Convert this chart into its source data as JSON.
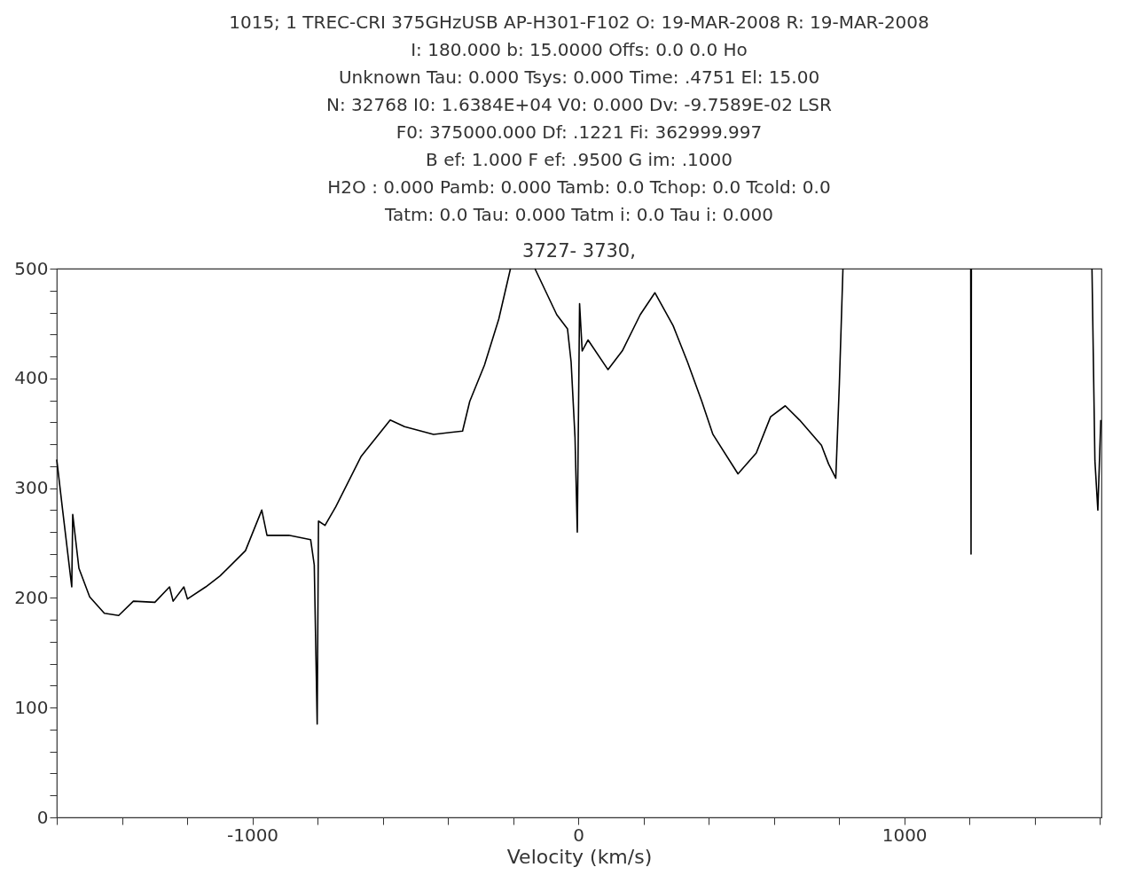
{
  "chart_data": {
    "type": "line",
    "title": "3727-  3730,",
    "annotations": [
      "1015;  1 TREC-CRI     375GHzUSB    AP-H301-F102 O: 19-MAR-2008 R: 19-MAR-2008",
      "I:    180.000        b:    15.0000                         Offs:     0.0            0.0     Ho",
      "Unknown    Tau:    0.000        Tsys:    0.000        Time:    .4751        El:  15.00",
      "N: 32768   I0:  1.6384E+04         V0:    0.000        Dv: -9.7589E-02  LSR",
      "F0:    375000.000        Df:    .1221        Fi:    362999.997",
      "B ef:    1.000        F ef:    .9500        G im:    .1000",
      "H2O :    0.000        Pamb:    0.000        Tamb:    0.0 Tchop:    0.0 Tcold:    0.0",
      "Tatm:    0.0  Tau:    0.000        Tatm i:    0.0  Tau i:    0.000"
    ],
    "xlabel": "Velocity (km/s)",
    "x": [
      -1600,
      -1582,
      -1554,
      -1551,
      -1532,
      -1499,
      -1454,
      -1410,
      -1365,
      -1299,
      -1254,
      -1243,
      -1210,
      -1199,
      -1143,
      -1099,
      -1021,
      -971,
      -955,
      -888,
      -821,
      -810,
      -801,
      -797,
      -777,
      -744,
      -666,
      -577,
      -533,
      -444,
      -355,
      -333,
      -288,
      -244,
      -208,
      -170,
      -133,
      -66,
      -33,
      -22,
      -10,
      -3,
      4,
      12,
      30,
      91,
      135,
      190,
      235,
      291,
      335,
      379,
      413,
      490,
      546,
      590,
      635,
      679,
      746,
      768,
      790,
      801,
      812,
      1000,
      1204,
      1205,
      1206,
      1400,
      1576,
      1585,
      1594,
      1603
    ],
    "series": [
      {
        "color": "#000000",
        "values": [
          326,
          280,
          210,
          276,
          227,
          201,
          186,
          184,
          197,
          196,
          210,
          197,
          210,
          199,
          210,
          220,
          243,
          280,
          257,
          257,
          253,
          230,
          85,
          270,
          266,
          283,
          329,
          362,
          356,
          349,
          352,
          379,
          412,
          454,
          500,
          null,
          500,
          458,
          445,
          415,
          346,
          260,
          468,
          425,
          435,
          408,
          425,
          458,
          478,
          448,
          415,
          379,
          349,
          313,
          332,
          365,
          375,
          362,
          339,
          322,
          309,
          395,
          500,
          null,
          500,
          240,
          500,
          null,
          500,
          325,
          280,
          362
        ]
      }
    ],
    "xlim": [
      -1600,
      1605
    ],
    "ylim": [
      0,
      500
    ],
    "xticks": [
      {
        "value": -1600,
        "label": null
      },
      {
        "value": -1400,
        "label": null
      },
      {
        "value": -1200,
        "label": null
      },
      -1000,
      {
        "value": -800,
        "label": null
      },
      {
        "value": -600,
        "label": null
      },
      {
        "value": -400,
        "label": null
      },
      {
        "value": -200,
        "label": null
      },
      0,
      {
        "value": 200,
        "label": null
      },
      {
        "value": 400,
        "label": null
      },
      {
        "value": 600,
        "label": null
      },
      {
        "value": 800,
        "label": null
      },
      1000,
      {
        "value": 1200,
        "label": null
      },
      {
        "value": 1400,
        "label": null
      },
      {
        "value": 1600,
        "label": null
      }
    ],
    "yticks": [
      0,
      {
        "value": 20,
        "label": null
      },
      {
        "value": 40,
        "label": null
      },
      {
        "value": 60,
        "label": null
      },
      {
        "value": 80,
        "label": null
      },
      100,
      {
        "value": 120,
        "label": null
      },
      {
        "value": 140,
        "label": null
      },
      {
        "value": 160,
        "label": null
      },
      {
        "value": 180,
        "label": null
      },
      200,
      {
        "value": 220,
        "label": null
      },
      {
        "value": 240,
        "label": null
      },
      {
        "value": 260,
        "label": null
      },
      {
        "value": 280,
        "label": null
      },
      300,
      {
        "value": 320,
        "label": null
      },
      {
        "value": 340,
        "label": null
      },
      {
        "value": 360,
        "label": null
      },
      {
        "value": 380,
        "label": null
      },
      400,
      {
        "value": 420,
        "label": null
      },
      {
        "value": 440,
        "label": null
      },
      {
        "value": 460,
        "label": null
      },
      {
        "value": 480,
        "label": null
      },
      500
    ],
    "grid": false,
    "marker": "none",
    "line_style": "solid"
  }
}
